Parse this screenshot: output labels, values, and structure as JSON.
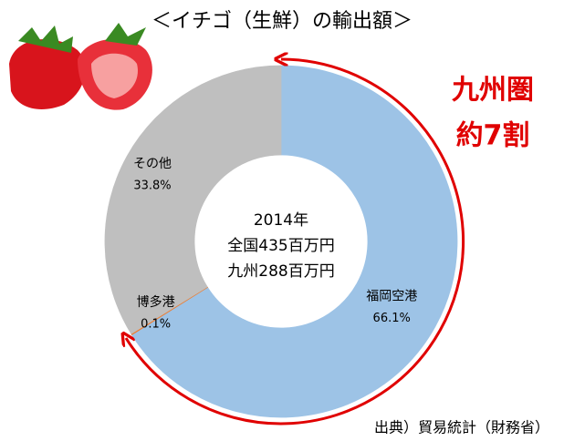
{
  "chart_data": {
    "type": "donut",
    "title": "＜イチゴ（生鮮）の輸出額＞",
    "categories": [
      "福岡空港",
      "博多港",
      "その他"
    ],
    "values": [
      66.1,
      0.1,
      33.8
    ],
    "value_labels": [
      "66.1%",
      "0.1%",
      "33.8%"
    ],
    "colors": [
      "#9dc3e6",
      "#ed7d31",
      "#bfbfbf"
    ],
    "center_text": [
      "2014年",
      "全国435百万円",
      "九州288百万円"
    ],
    "annotation": [
      "九州圏",
      "約7割"
    ],
    "source": "出典）貿易統計（財務省）"
  }
}
